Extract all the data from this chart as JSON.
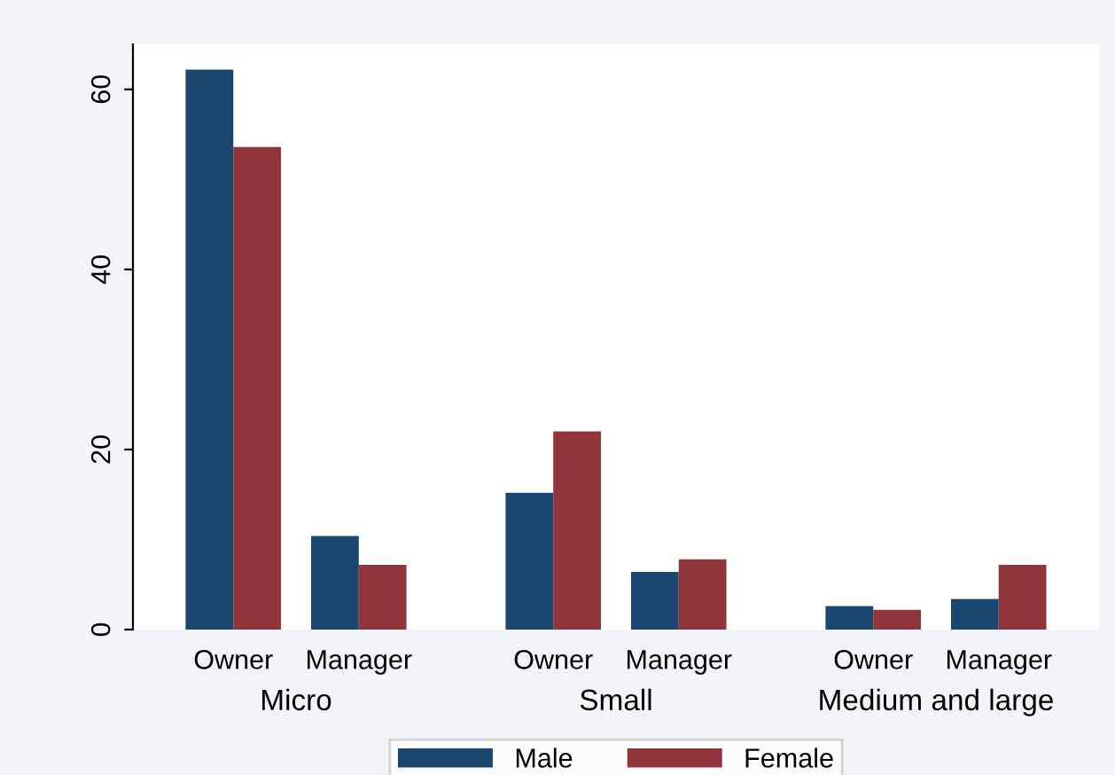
{
  "chart_data": {
    "type": "bar",
    "categories": [
      "Owner",
      "Manager",
      "Owner",
      "Manager",
      "Owner",
      "Manager"
    ],
    "series": [
      {
        "name": "Male",
        "color": "#1a476f",
        "values": [
          62.2,
          10.4,
          15.2,
          6.4,
          2.6,
          3.4
        ]
      },
      {
        "name": "Female",
        "color": "#90353b",
        "values": [
          53.6,
          7.2,
          22,
          7.8,
          2.2,
          7.2
        ]
      }
    ],
    "annotations": [
      "Micro",
      "Small",
      "Medium and large"
    ],
    "ylim": [
      0,
      65
    ],
    "yticks": [
      0,
      20,
      40,
      60
    ],
    "grid": false,
    "legend": "bottom"
  }
}
